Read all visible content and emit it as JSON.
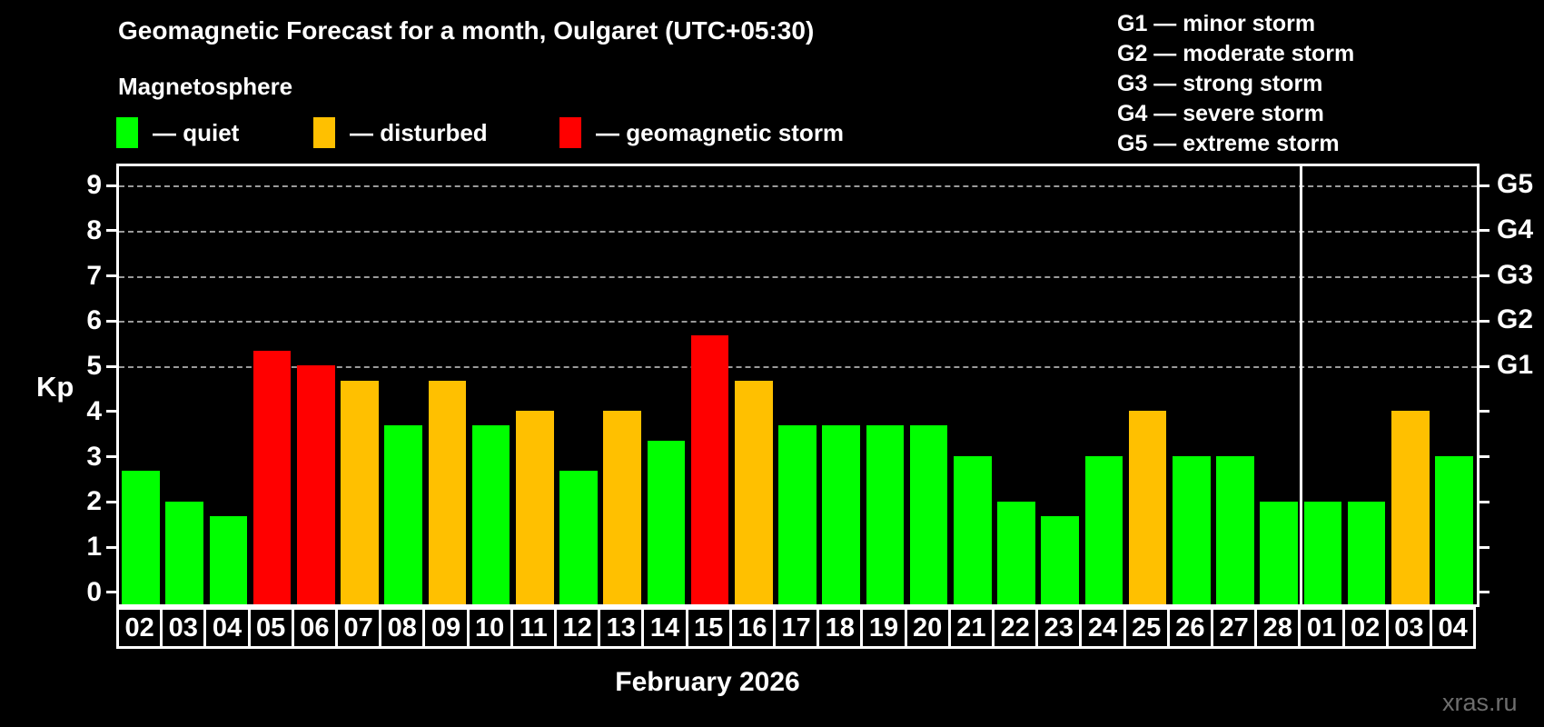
{
  "header": {
    "title": "Geomagnetic Forecast for a month, Oulgaret (UTC+05:30)",
    "subtitle": "Magnetosphere",
    "dash": "—",
    "legend": [
      {
        "status": "quiet",
        "label": "quiet",
        "color": "#00ff00"
      },
      {
        "status": "disturbed",
        "label": "disturbed",
        "color": "#ffc000"
      },
      {
        "status": "storm",
        "label": "geomagnetic storm",
        "color": "#ff0000"
      }
    ]
  },
  "storm_scale_legend": [
    {
      "level": "G1",
      "desc": "minor storm"
    },
    {
      "level": "G2",
      "desc": "moderate storm"
    },
    {
      "level": "G3",
      "desc": "strong storm"
    },
    {
      "level": "G4",
      "desc": "severe storm"
    },
    {
      "level": "G5",
      "desc": "extreme storm"
    }
  ],
  "chart_data": {
    "type": "bar",
    "title": "Magnetosphere",
    "ylabel": "Kp",
    "xlabel": "February 2026",
    "ylim": [
      0,
      9.4
    ],
    "yticks": [
      0,
      1,
      2,
      3,
      4,
      5,
      6,
      7,
      8,
      9
    ],
    "gridlines_at": [
      5,
      6,
      7,
      8,
      9
    ],
    "grid": "dashed, only Kp 5-9",
    "legend_position": "top-left",
    "right_axis_labels": [
      {
        "kp": 5,
        "label": "G1"
      },
      {
        "kp": 6,
        "label": "G2"
      },
      {
        "kp": 7,
        "label": "G3"
      },
      {
        "kp": 8,
        "label": "G4"
      },
      {
        "kp": 9,
        "label": "G5"
      }
    ],
    "categories": [
      "02",
      "03",
      "04",
      "05",
      "06",
      "07",
      "08",
      "09",
      "10",
      "11",
      "12",
      "13",
      "14",
      "15",
      "16",
      "17",
      "18",
      "19",
      "20",
      "21",
      "22",
      "23",
      "24",
      "25",
      "26",
      "27",
      "28",
      "01",
      "02",
      "03",
      "04"
    ],
    "values": [
      2.67,
      2.0,
      1.67,
      5.33,
      5.0,
      4.67,
      3.67,
      4.67,
      3.67,
      4.0,
      2.67,
      4.0,
      3.33,
      5.67,
      4.67,
      3.67,
      3.67,
      3.67,
      3.67,
      3.0,
      2.0,
      1.67,
      3.0,
      4.0,
      3.0,
      3.0,
      2.0,
      2.0,
      2.0,
      4.0,
      3.0
    ],
    "status": [
      "quiet",
      "quiet",
      "quiet",
      "storm",
      "storm",
      "disturbed",
      "quiet",
      "disturbed",
      "quiet",
      "disturbed",
      "quiet",
      "disturbed",
      "quiet",
      "storm",
      "disturbed",
      "quiet",
      "quiet",
      "quiet",
      "quiet",
      "quiet",
      "quiet",
      "quiet",
      "quiet",
      "disturbed",
      "quiet",
      "quiet",
      "quiet",
      "quiet",
      "quiet",
      "disturbed",
      "quiet"
    ],
    "colors": {
      "quiet": "#00ff00",
      "disturbed": "#ffc000",
      "storm": "#ff0000"
    },
    "month_separator_after_index": 26
  },
  "footer": {
    "month_label": "February 2026",
    "watermark": "xras.ru"
  }
}
